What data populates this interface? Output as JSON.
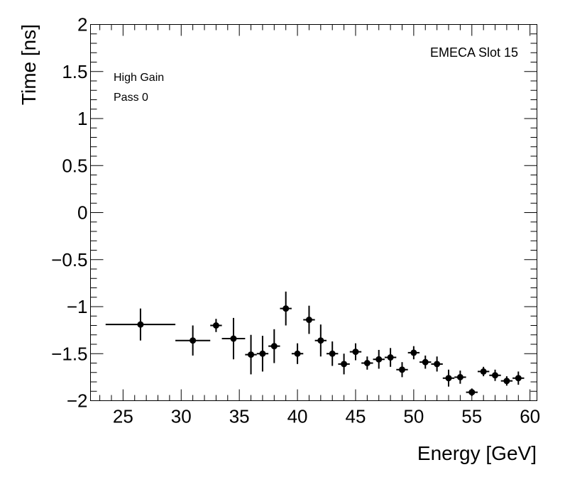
{
  "chart_data": {
    "type": "scatter",
    "title": "EMECA Slot 15",
    "annotations": [
      "High Gain",
      "Pass 0"
    ],
    "xlabel": "Energy [GeV]",
    "ylabel": "Time [ns]",
    "xlim": [
      22.2,
      60.6
    ],
    "ylim": [
      -2,
      2
    ],
    "x_ticks": [
      25,
      30,
      35,
      40,
      45,
      50,
      55,
      60
    ],
    "x_tick_labels": [
      "25",
      "30",
      "35",
      "40",
      "45",
      "50",
      "55",
      "60"
    ],
    "y_ticks": [
      -2,
      -1.5,
      -1,
      -0.5,
      0,
      0.5,
      1,
      1.5,
      2
    ],
    "y_tick_labels": [
      "−2",
      "−1.5",
      "−1",
      "−0.5",
      "0",
      "0.5",
      "1",
      "1.5",
      "2"
    ],
    "grid": false,
    "points": [
      {
        "x": 26.5,
        "y": -1.19,
        "xerr_lo": 3.0,
        "xerr_hi": 3.0,
        "yerr": 0.17
      },
      {
        "x": 31.0,
        "y": -1.36,
        "xerr_lo": 1.5,
        "xerr_hi": 1.5,
        "yerr": 0.16
      },
      {
        "x": 33.0,
        "y": -1.2,
        "xerr_lo": 0.5,
        "xerr_hi": 0.5,
        "yerr": 0.07
      },
      {
        "x": 34.5,
        "y": -1.34,
        "xerr_lo": 1.0,
        "xerr_hi": 1.0,
        "yerr": 0.22
      },
      {
        "x": 36.0,
        "y": -1.51,
        "xerr_lo": 0.5,
        "xerr_hi": 0.5,
        "yerr": 0.21
      },
      {
        "x": 37.0,
        "y": -1.5,
        "xerr_lo": 0.5,
        "xerr_hi": 0.5,
        "yerr": 0.19
      },
      {
        "x": 38.0,
        "y": -1.42,
        "xerr_lo": 0.5,
        "xerr_hi": 0.5,
        "yerr": 0.18
      },
      {
        "x": 39.0,
        "y": -1.02,
        "xerr_lo": 0.5,
        "xerr_hi": 0.5,
        "yerr": 0.18
      },
      {
        "x": 40.0,
        "y": -1.5,
        "xerr_lo": 0.5,
        "xerr_hi": 0.5,
        "yerr": 0.11
      },
      {
        "x": 41.0,
        "y": -1.14,
        "xerr_lo": 0.5,
        "xerr_hi": 0.5,
        "yerr": 0.15
      },
      {
        "x": 42.0,
        "y": -1.36,
        "xerr_lo": 0.5,
        "xerr_hi": 0.5,
        "yerr": 0.17
      },
      {
        "x": 43.0,
        "y": -1.5,
        "xerr_lo": 0.5,
        "xerr_hi": 0.5,
        "yerr": 0.13
      },
      {
        "x": 44.0,
        "y": -1.61,
        "xerr_lo": 0.5,
        "xerr_hi": 0.5,
        "yerr": 0.11
      },
      {
        "x": 45.0,
        "y": -1.48,
        "xerr_lo": 0.5,
        "xerr_hi": 0.5,
        "yerr": 0.09
      },
      {
        "x": 46.0,
        "y": -1.6,
        "xerr_lo": 0.5,
        "xerr_hi": 0.5,
        "yerr": 0.07
      },
      {
        "x": 47.0,
        "y": -1.56,
        "xerr_lo": 0.5,
        "xerr_hi": 0.5,
        "yerr": 0.1
      },
      {
        "x": 48.0,
        "y": -1.54,
        "xerr_lo": 0.5,
        "xerr_hi": 0.5,
        "yerr": 0.1
      },
      {
        "x": 49.0,
        "y": -1.67,
        "xerr_lo": 0.5,
        "xerr_hi": 0.5,
        "yerr": 0.08
      },
      {
        "x": 50.0,
        "y": -1.49,
        "xerr_lo": 0.5,
        "xerr_hi": 0.5,
        "yerr": 0.07
      },
      {
        "x": 51.0,
        "y": -1.59,
        "xerr_lo": 0.5,
        "xerr_hi": 0.5,
        "yerr": 0.07
      },
      {
        "x": 52.0,
        "y": -1.61,
        "xerr_lo": 0.5,
        "xerr_hi": 0.5,
        "yerr": 0.08
      },
      {
        "x": 53.0,
        "y": -1.76,
        "xerr_lo": 0.5,
        "xerr_hi": 0.5,
        "yerr": 0.09
      },
      {
        "x": 54.0,
        "y": -1.75,
        "xerr_lo": 0.5,
        "xerr_hi": 0.5,
        "yerr": 0.07
      },
      {
        "x": 55.0,
        "y": -1.91,
        "xerr_lo": 0.5,
        "xerr_hi": 0.5,
        "yerr": 0.04
      },
      {
        "x": 56.0,
        "y": -1.69,
        "xerr_lo": 0.5,
        "xerr_hi": 0.5,
        "yerr": 0.05
      },
      {
        "x": 57.0,
        "y": -1.73,
        "xerr_lo": 0.5,
        "xerr_hi": 0.5,
        "yerr": 0.06
      },
      {
        "x": 58.0,
        "y": -1.79,
        "xerr_lo": 0.5,
        "xerr_hi": 0.5,
        "yerr": 0.05
      },
      {
        "x": 59.0,
        "y": -1.76,
        "xerr_lo": 0.5,
        "xerr_hi": 0.5,
        "yerr": 0.07
      }
    ]
  }
}
